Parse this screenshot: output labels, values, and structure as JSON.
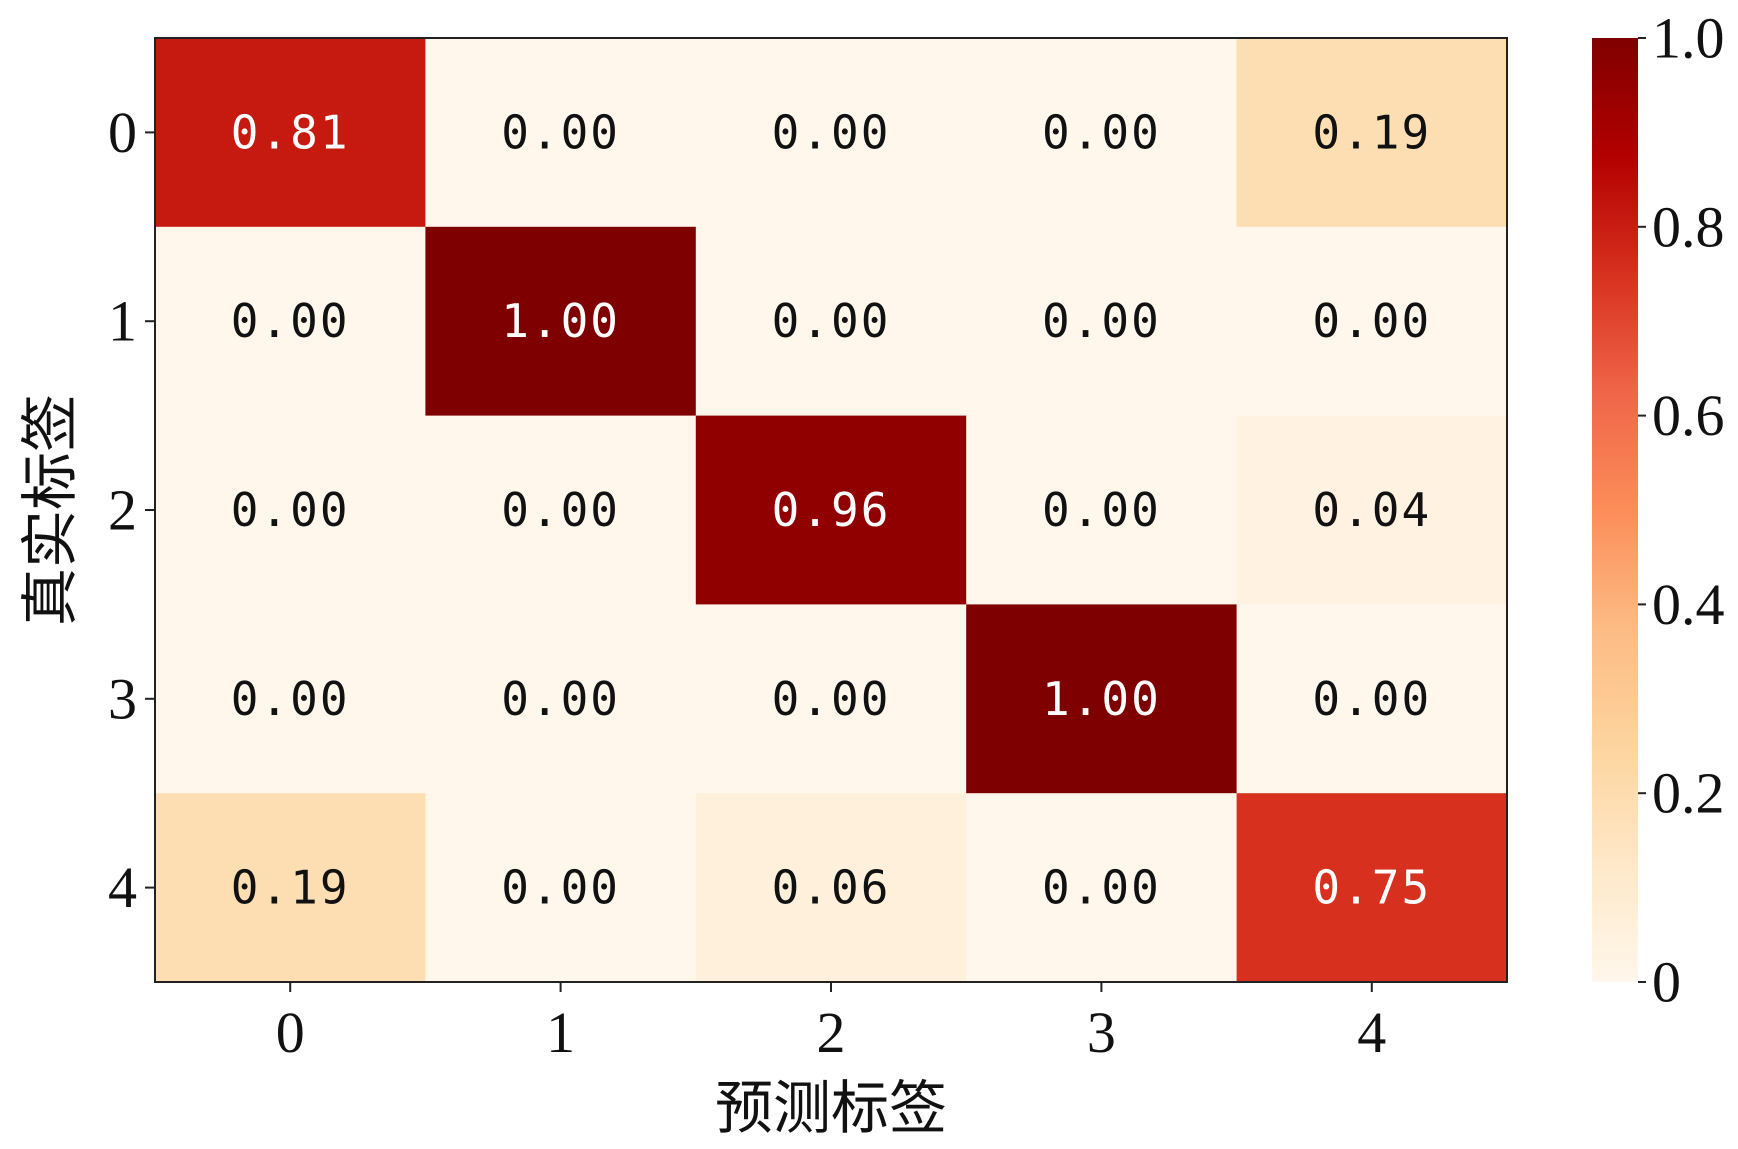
{
  "chart_data": {
    "type": "heatmap",
    "title": "",
    "xlabel": "预测标签",
    "ylabel": "真实标签",
    "x_categories": [
      "0",
      "1",
      "2",
      "3",
      "4"
    ],
    "y_categories": [
      "0",
      "1",
      "2",
      "3",
      "4"
    ],
    "values": [
      [
        0.81,
        0.0,
        0.0,
        0.0,
        0.19
      ],
      [
        0.0,
        1.0,
        0.0,
        0.0,
        0.0
      ],
      [
        0.0,
        0.0,
        0.96,
        0.0,
        0.04
      ],
      [
        0.0,
        0.0,
        0.0,
        1.0,
        0.0
      ],
      [
        0.19,
        0.0,
        0.06,
        0.0,
        0.75
      ]
    ],
    "value_format": "0.00",
    "colormap": "OrRd",
    "colorbar": {
      "range": [
        0,
        1.0
      ],
      "ticks": [
        0,
        0.2,
        0.4,
        0.6,
        0.8,
        1.0
      ],
      "tick_labels": [
        "0",
        "0.2",
        "0.4",
        "0.6",
        "0.8",
        "1.0"
      ]
    },
    "colormap_stops": [
      "#fff7ec",
      "#fee8c8",
      "#fdd49e",
      "#fdbb84",
      "#fc8d59",
      "#ef6548",
      "#d7301f",
      "#b30000",
      "#7f0000"
    ],
    "text_color_dark": "#111111",
    "text_color_light": "#ffffff",
    "grid": false
  }
}
